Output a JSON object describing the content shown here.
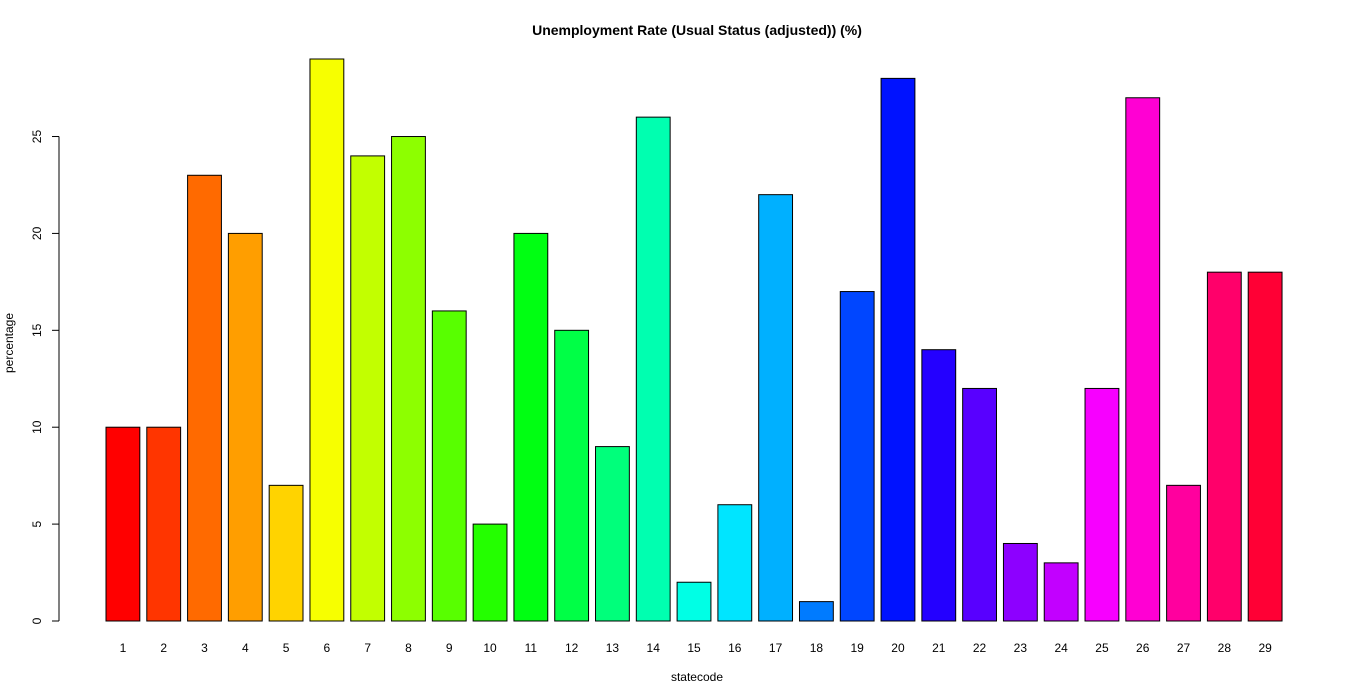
{
  "chart_data": {
    "type": "bar",
    "title": "Unemployment Rate (Usual Status (adjusted)) (%)",
    "xlabel": "statecode",
    "ylabel": "percentage",
    "ylim": [
      0,
      29
    ],
    "yticks": [
      0,
      5,
      10,
      15,
      20,
      25
    ],
    "grid": false,
    "categories": [
      "1",
      "2",
      "3",
      "4",
      "5",
      "6",
      "7",
      "8",
      "9",
      "10",
      "11",
      "12",
      "13",
      "14",
      "15",
      "16",
      "17",
      "18",
      "19",
      "20",
      "21",
      "22",
      "23",
      "24",
      "25",
      "26",
      "27",
      "28",
      "29"
    ],
    "values": [
      10,
      10,
      23,
      20,
      7,
      29,
      24,
      25,
      16,
      5,
      20,
      15,
      9,
      26,
      2,
      6,
      22,
      1,
      17,
      28,
      14,
      12,
      4,
      3,
      12,
      27,
      7,
      18,
      18
    ],
    "colors": [
      "#FF0000",
      "#FF3500",
      "#FF6A00",
      "#FF9E00",
      "#FFD300",
      "#F7FF00",
      "#C2FF00",
      "#8DFF00",
      "#58FF00",
      "#24FF00",
      "#00FF12",
      "#00FF46",
      "#00FF7B",
      "#00FFB0",
      "#00FFE5",
      "#00E5FF",
      "#00B0FF",
      "#007BFF",
      "#0046FF",
      "#0012FF",
      "#2400FF",
      "#5800FF",
      "#8D00FF",
      "#C200FF",
      "#F700FF",
      "#FF00D3",
      "#FF009E",
      "#FF006A",
      "#FF0035"
    ]
  }
}
